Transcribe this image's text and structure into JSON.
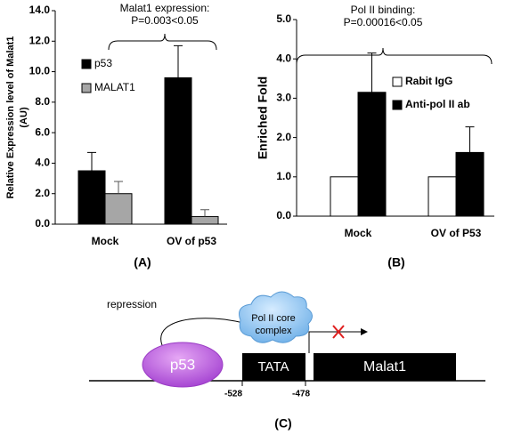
{
  "chart_data": [
    {
      "type": "bar",
      "panel_label": "(A)",
      "annotation": [
        "Malat1 expression:",
        "P=0.003<0.05"
      ],
      "y_label": [
        "Relative Expression level of Malat1",
        "(AU)"
      ],
      "categories": [
        "Mock",
        "OV of p53"
      ],
      "series": [
        {
          "name": "p53",
          "color": "#000000",
          "values": [
            3.5,
            9.6
          ],
          "errors": [
            1.2,
            2.1
          ]
        },
        {
          "name": "MALAT1",
          "color": "#a6a6a6",
          "values": [
            2.0,
            0.5
          ],
          "errors": [
            0.8,
            0.45
          ]
        }
      ],
      "ylim": [
        0,
        14
      ],
      "yticks": [
        {
          "value": 0,
          "label": "0.0"
        },
        {
          "value": 2,
          "label": "2.0"
        },
        {
          "value": 4,
          "label": "4.0"
        },
        {
          "value": 6,
          "label": "6.0"
        },
        {
          "value": 8,
          "label": "8.0"
        },
        {
          "value": 10,
          "label": "10.0"
        },
        {
          "value": 12,
          "label": "12.0"
        },
        {
          "value": 14,
          "label": "14.0"
        }
      ]
    },
    {
      "type": "bar",
      "panel_label": "(B)",
      "annotation": [
        "Pol II binding:",
        "P=0.00016<0.05"
      ],
      "y_label": [
        "Enriched Fold"
      ],
      "categories": [
        "Mock",
        "OV of P53"
      ],
      "series": [
        {
          "name": "Rabit IgG",
          "color": "#ffffff",
          "values": [
            1.0,
            1.0
          ]
        },
        {
          "name": "Anti-pol II ab",
          "color": "#000000",
          "values": [
            3.15,
            1.62
          ],
          "errors": [
            1.0,
            0.65
          ]
        }
      ],
      "ylim": [
        0,
        5
      ],
      "yticks": [
        {
          "value": 0,
          "label": "0.0"
        },
        {
          "value": 1,
          "label": "1.0"
        },
        {
          "value": 2,
          "label": "2.0"
        },
        {
          "value": 3,
          "label": "3.0"
        },
        {
          "value": 4,
          "label": "4.0"
        },
        {
          "value": 5,
          "label": "5.0"
        }
      ]
    }
  ],
  "diagram": {
    "repression": "repression",
    "complex": [
      "Pol II core",
      "complex"
    ],
    "protein": "p53",
    "box": "TATA",
    "gene": "Malat1",
    "positions": [
      "-528",
      "-478"
    ],
    "panel_label": "(C)"
  }
}
